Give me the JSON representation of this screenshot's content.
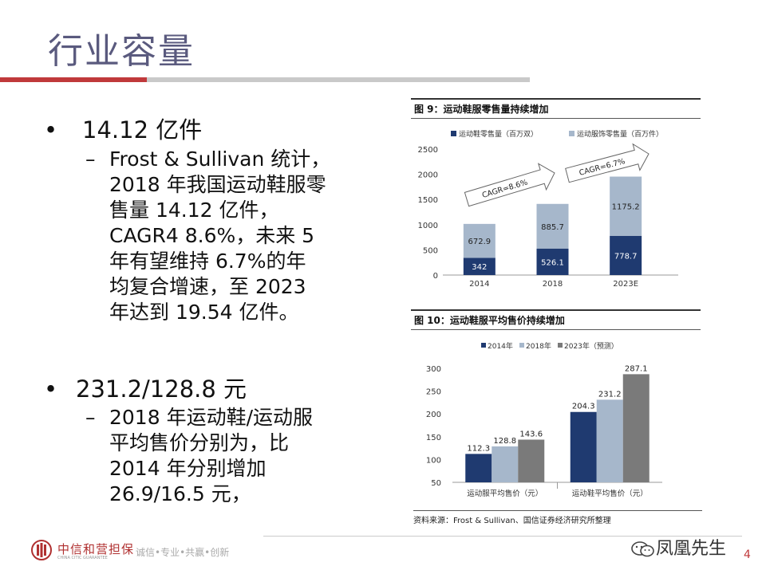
{
  "slide": {
    "title": "行业容量",
    "page_number": "4"
  },
  "bullets": [
    {
      "symbol": "•",
      "heading": "14.12 亿件",
      "sub_symbol": "–",
      "sub_lines": [
        "Frost & Sullivan 统计，",
        "2018 年我国运动鞋服零",
        "售量 14.12 亿件，",
        "CAGR4 8.6%，未来 5",
        "年有望维持 6.7%的年",
        "均复合增速，至 2023",
        "年达到 19.54 亿件。"
      ]
    },
    {
      "symbol": "•",
      "heading": "231.2/128.8 元",
      "sub_symbol": "–",
      "sub_lines": [
        "2018 年运动鞋/运动服",
        "平均售价分别为，比",
        "2014 年分别增加",
        "26.9/16.5 元，"
      ]
    }
  ],
  "figures": {
    "fig9_title": "图 9：运动鞋服零售量持续增加",
    "fig10_title": "图 10：运动鞋服平均售价持续增加",
    "source": "资料来源：Frost & Sullivan、国信证券经济研究所整理"
  },
  "chart_data": [
    {
      "type": "bar",
      "stacked": true,
      "title": "图 9：运动鞋服零售量持续增加",
      "categories": [
        "2014",
        "2018",
        "2023E"
      ],
      "series": [
        {
          "name": "运动鞋零售量（百万双）",
          "values": [
            342,
            526.1,
            778.7
          ],
          "color": "#1f3a70"
        },
        {
          "name": "运动服饰零售量（百万件）",
          "values": [
            672.9,
            885.7,
            1175.2
          ],
          "color": "#a6b7cb"
        }
      ],
      "ylim": [
        0,
        2500
      ],
      "yticks": [
        "0",
        "500",
        "1000",
        "1500",
        "2000",
        "2500"
      ],
      "annotations": [
        "CAGR=8.6%",
        "CAGR=6.7%"
      ],
      "xlabel": "",
      "ylabel": ""
    },
    {
      "type": "bar",
      "title": "图 10：运动鞋服平均售价持续增加",
      "categories": [
        "运动服平均售价（元）",
        "运动鞋平均售价（元）"
      ],
      "series": [
        {
          "name": "2014年",
          "values": [
            112.3,
            204.3
          ],
          "color": "#1f3a70"
        },
        {
          "name": "2018年",
          "values": [
            128.8,
            231.2
          ],
          "color": "#a6b7cb"
        },
        {
          "name": "2023年（预测）",
          "values": [
            143.6,
            287.1
          ],
          "color": "#7a7a7a"
        }
      ],
      "ylim": [
        50,
        300
      ],
      "yticks": [
        "50",
        "100",
        "150",
        "200",
        "250",
        "300"
      ],
      "xlabel": "",
      "ylabel": ""
    }
  ],
  "footer": {
    "logo_cn": "中信和营担保",
    "logo_en": "CHINA CITIC GUARANTEE",
    "slogan": "诚信•专业•共赢•创新",
    "wechat": "凤凰先生"
  }
}
